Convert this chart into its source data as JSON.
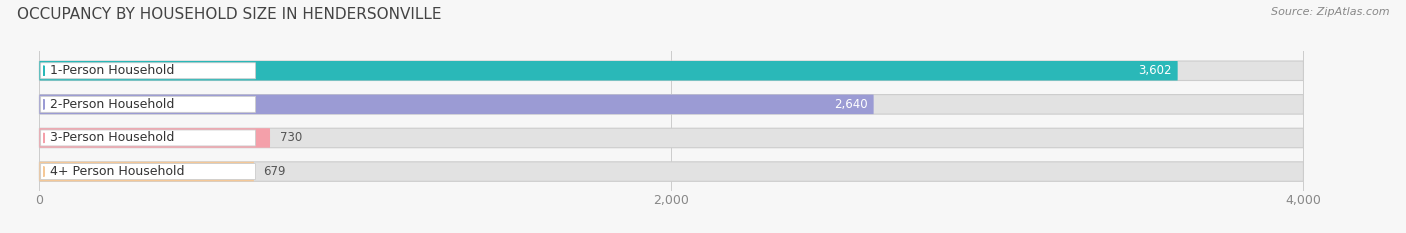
{
  "title": "OCCUPANCY BY HOUSEHOLD SIZE IN HENDERSONVILLE",
  "source": "Source: ZipAtlas.com",
  "categories": [
    "1-Person Household",
    "2-Person Household",
    "3-Person Household",
    "4+ Person Household"
  ],
  "values": [
    3602,
    2640,
    730,
    679
  ],
  "bar_colors": [
    "#2ab8b8",
    "#9b9bd4",
    "#f4a0aa",
    "#f5c897"
  ],
  "value_labels": [
    "3,602",
    "2,640",
    "730",
    "679"
  ],
  "value_label_colors": [
    "#ffffff",
    "#ffffff",
    "#555555",
    "#555555"
  ],
  "xlim": [
    -80,
    4280
  ],
  "data_max": 4000,
  "xticks": [
    0,
    2000,
    4000
  ],
  "xtick_labels": [
    "0",
    "2,000",
    "4,000"
  ],
  "background_color": "#f7f7f7",
  "bar_bg_color": "#e2e2e2",
  "title_fontsize": 11,
  "label_fontsize": 9,
  "value_fontsize": 8.5,
  "source_fontsize": 8
}
